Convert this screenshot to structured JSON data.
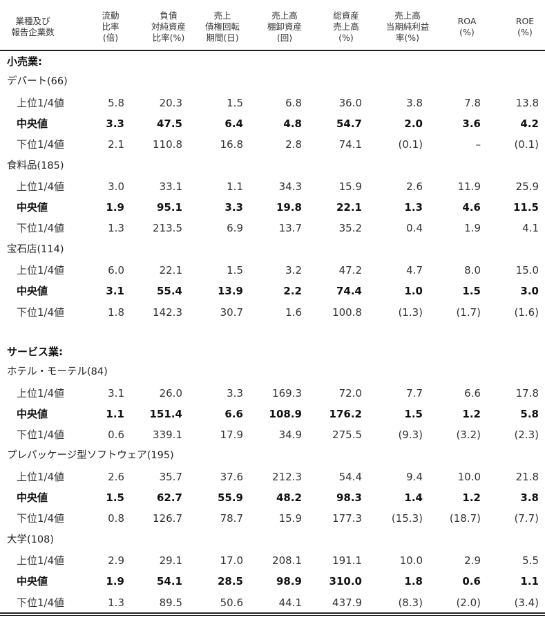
{
  "headers": [
    "業種及び\n報告企業数",
    "流動\n比率\n(倍)",
    "負債\n対純資産\n比率(%)",
    "売上\n債権回転\n期間(日)",
    "売上高\n棚卸資産\n(回)",
    "総資産\n売上高\n(%)",
    "売上高\n当期純利益\n率(%)",
    "ROA\n(%)",
    "ROE\n(%)"
  ],
  "sections": [
    {
      "title": "小売業:",
      "groups": [
        {
          "name": "デパート(66)",
          "rows": [
            {
              "label": "上位1/4値",
              "type": "quartile",
              "values": [
                "5.8",
                "20.3",
                "1.5",
                "6.8",
                "36.0",
                "3.8",
                "7.8",
                "13.8"
              ]
            },
            {
              "label": "中央値",
              "type": "median",
              "values": [
                "3.3",
                "47.5",
                "6.4",
                "4.8",
                "54.7",
                "2.0",
                "3.6",
                "4.2"
              ]
            },
            {
              "label": "下位1/4値",
              "type": "quartile",
              "values": [
                "2.1",
                "110.8",
                "16.8",
                "2.8",
                "74.1",
                "(0.1)",
                "–",
                "(0.1)"
              ]
            }
          ]
        },
        {
          "name": "食料品(185)",
          "rows": [
            {
              "label": "上位1/4値",
              "type": "quartile",
              "values": [
                "3.0",
                "33.1",
                "1.1",
                "34.3",
                "15.9",
                "2.6",
                "11.9",
                "25.9"
              ]
            },
            {
              "label": "中央値",
              "type": "median",
              "values": [
                "1.9",
                "95.1",
                "3.3",
                "19.8",
                "22.1",
                "1.3",
                "4.6",
                "11.5"
              ]
            },
            {
              "label": "下位1/4値",
              "type": "quartile",
              "values": [
                "1.3",
                "213.5",
                "6.9",
                "13.7",
                "35.2",
                "0.4",
                "1.9",
                "4.1"
              ]
            }
          ]
        },
        {
          "name": "宝石店(114)",
          "rows": [
            {
              "label": "上位1/4値",
              "type": "quartile",
              "values": [
                "6.0",
                "22.1",
                "1.5",
                "3.2",
                "47.2",
                "4.7",
                "8.0",
                "15.0"
              ]
            },
            {
              "label": "中央値",
              "type": "median",
              "values": [
                "3.1",
                "55.4",
                "13.9",
                "2.2",
                "74.4",
                "1.0",
                "1.5",
                "3.0"
              ]
            },
            {
              "label": "下位1/4値",
              "type": "quartile",
              "values": [
                "1.8",
                "142.3",
                "30.7",
                "1.6",
                "100.8",
                "(1.3)",
                "(1.7)",
                "(1.6)"
              ]
            }
          ]
        }
      ]
    },
    {
      "title": "サービス業:",
      "groups": [
        {
          "name": "ホテル・モーテル(84)",
          "rows": [
            {
              "label": "上位1/4値",
              "type": "quartile",
              "values": [
                "3.1",
                "26.0",
                "3.3",
                "169.3",
                "72.0",
                "7.7",
                "6.6",
                "17.8"
              ]
            },
            {
              "label": "中央値",
              "type": "median",
              "values": [
                "1.1",
                "151.4",
                "6.6",
                "108.9",
                "176.2",
                "1.5",
                "1.2",
                "5.8"
              ]
            },
            {
              "label": "下位1/4値",
              "type": "quartile",
              "values": [
                "0.6",
                "339.1",
                "17.9",
                "34.9",
                "275.5",
                "(9.3)",
                "(3.2)",
                "(2.3)"
              ]
            }
          ]
        },
        {
          "name": "プレパッケージ型ソフトウェア(195)",
          "rows": [
            {
              "label": "上位1/4値",
              "type": "quartile",
              "values": [
                "2.6",
                "35.7",
                "37.6",
                "212.3",
                "54.4",
                "9.4",
                "10.0",
                "21.8"
              ]
            },
            {
              "label": "中央値",
              "type": "median",
              "values": [
                "1.5",
                "62.7",
                "55.9",
                "48.2",
                "98.3",
                "1.4",
                "1.2",
                "3.8"
              ]
            },
            {
              "label": "下位1/4値",
              "type": "quartile",
              "values": [
                "0.8",
                "126.7",
                "78.7",
                "15.9",
                "177.3",
                "(15.3)",
                "(18.7)",
                "(7.7)"
              ]
            }
          ]
        },
        {
          "name": "大学(108)",
          "rows": [
            {
              "label": "上位1/4値",
              "type": "quartile",
              "values": [
                "2.9",
                "29.1",
                "17.0",
                "208.1",
                "191.1",
                "10.0",
                "2.9",
                "5.5"
              ]
            },
            {
              "label": "中央値",
              "type": "median",
              "values": [
                "1.9",
                "54.1",
                "28.5",
                "98.9",
                "310.0",
                "1.8",
                "0.6",
                "1.1"
              ]
            },
            {
              "label": "下位1/4値",
              "type": "quartile",
              "values": [
                "1.3",
                "89.5",
                "50.6",
                "44.1",
                "437.9",
                "(8.3)",
                "(2.0)",
                "(3.4)"
              ]
            }
          ]
        }
      ]
    }
  ]
}
